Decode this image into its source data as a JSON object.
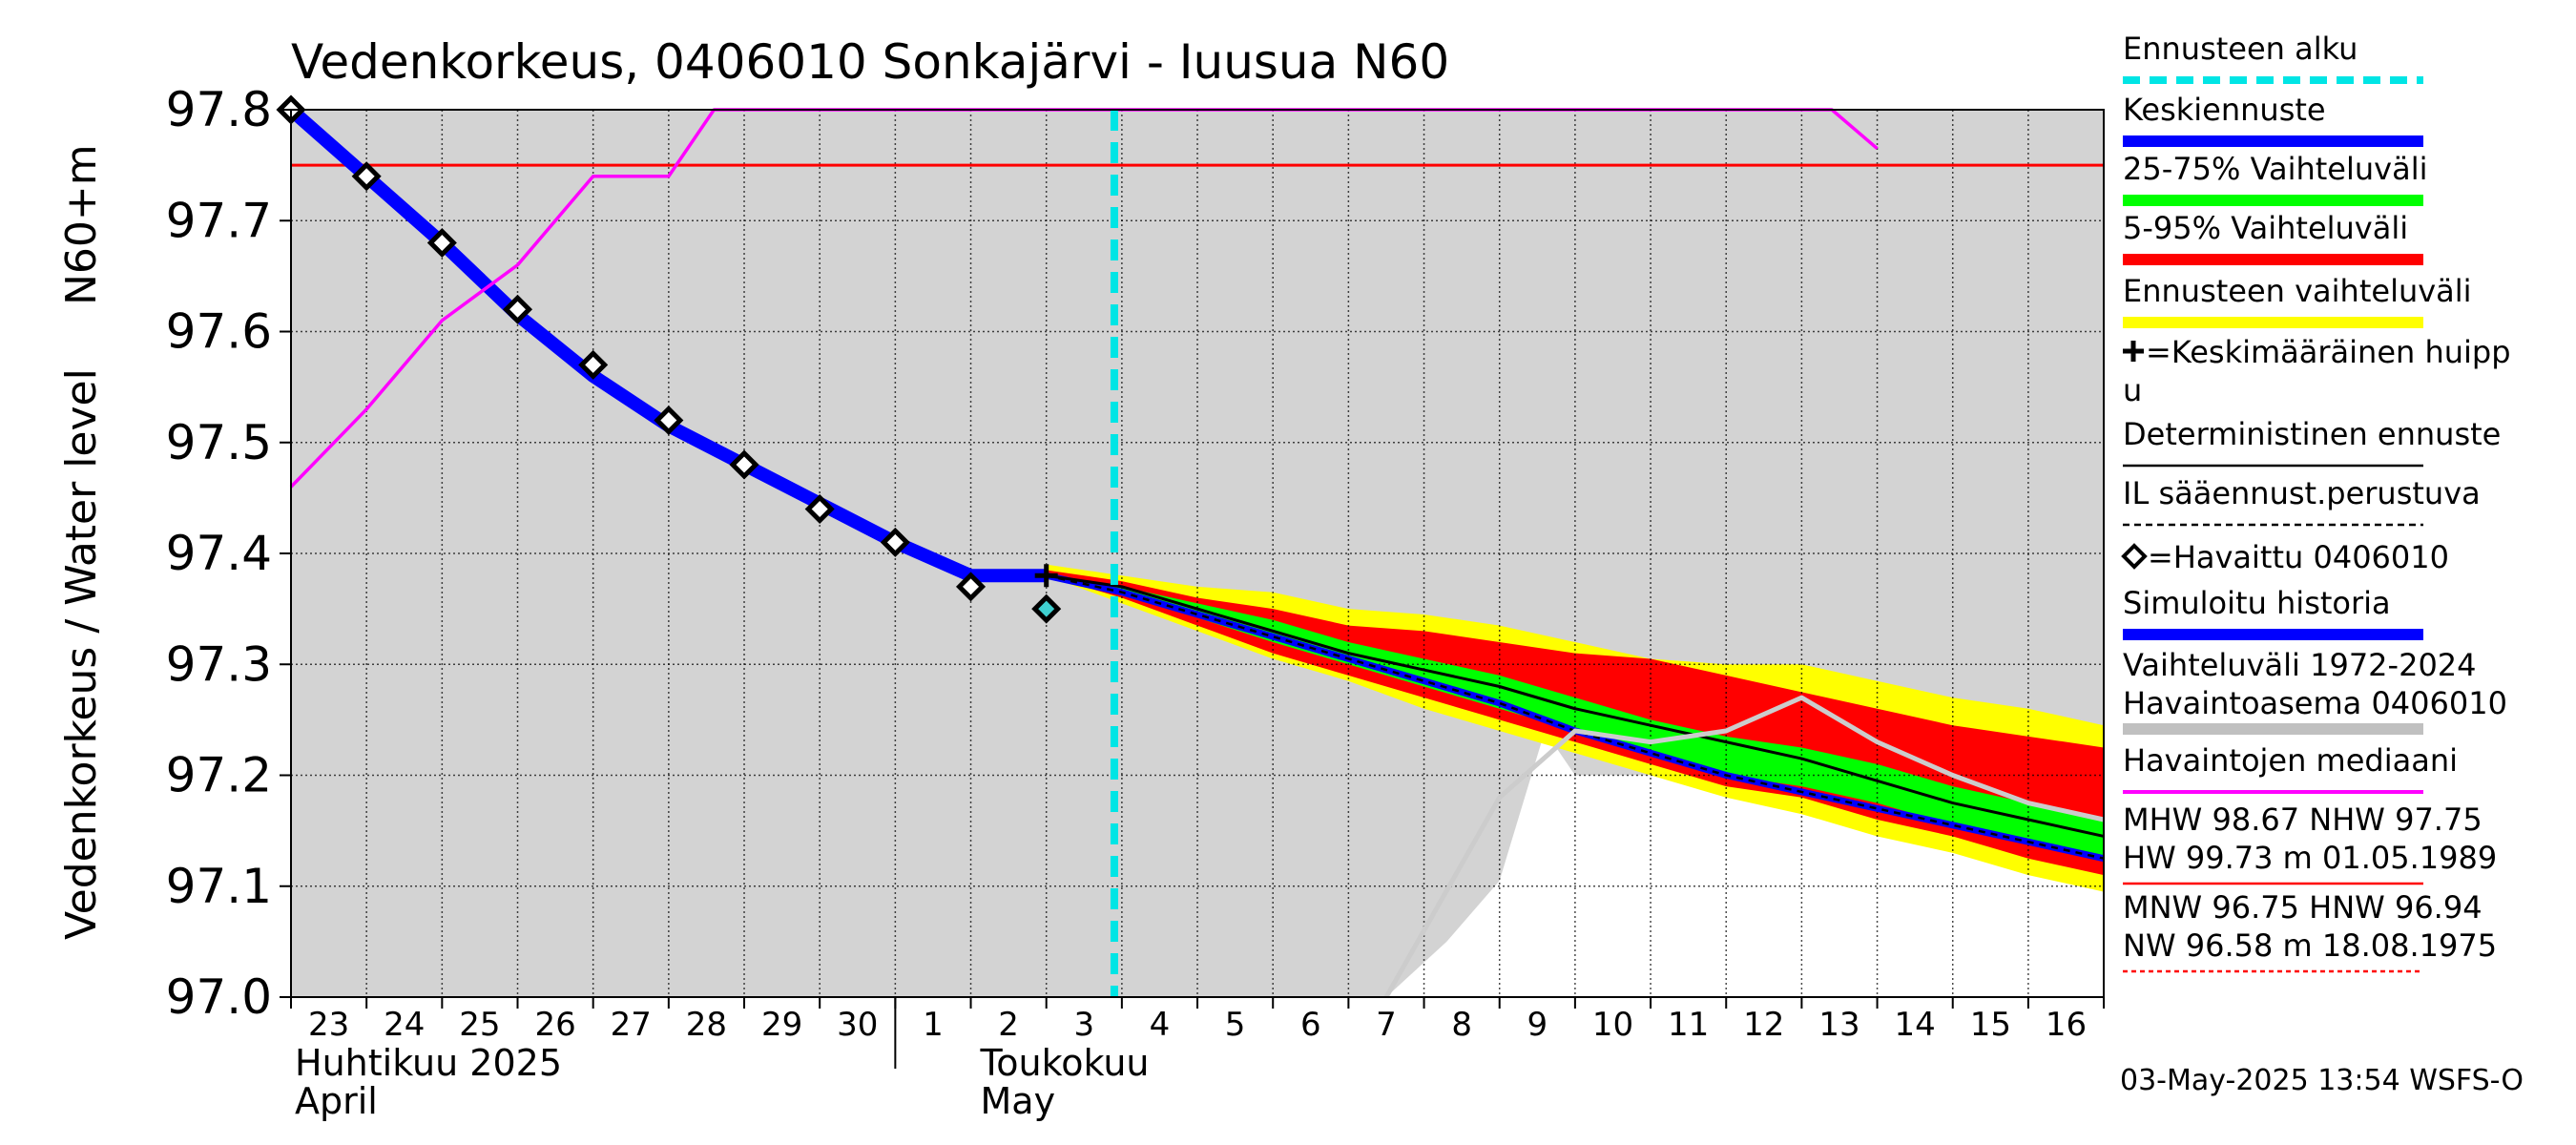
{
  "chart_data": {
    "type": "line",
    "title": "Vedenkorkeus, 0406010 Sonkajärvi - Iuusua N60",
    "ylabel_left": "Vedenkorkeus / Water level",
    "ylabel_unit": "N60+m",
    "ylim": [
      97.0,
      97.8
    ],
    "yticks": [
      "97.0",
      "97.1",
      "97.2",
      "97.3",
      "97.4",
      "97.5",
      "97.6",
      "97.7",
      "97.8"
    ],
    "x_days": [
      "23",
      "24",
      "25",
      "26",
      "27",
      "28",
      "29",
      "30",
      "1",
      "2",
      "3",
      "4",
      "5",
      "6",
      "7",
      "8",
      "9",
      "10",
      "11",
      "12",
      "13",
      "14",
      "15",
      "16"
    ],
    "x_start_date": "2025-04-23",
    "months": [
      {
        "fi": "Huhtikuu  2025",
        "en": "April",
        "start_day_index": 0
      },
      {
        "fi": "Toukokuu",
        "en": "May",
        "start_day_index": 9
      }
    ],
    "forecast_start_day": 10.9,
    "grid": true,
    "reference_line": {
      "name": "NHW",
      "value": 97.75,
      "color": "#ff0000"
    },
    "series": [
      {
        "name": "Simuloitu historia",
        "color": "#0000ff",
        "type": "line",
        "x": [
          0,
          1,
          2,
          3,
          4,
          5,
          6,
          7,
          8,
          9,
          10
        ],
        "y": [
          97.8,
          97.74,
          97.68,
          97.615,
          97.56,
          97.515,
          97.48,
          97.445,
          97.41,
          97.38,
          97.38
        ]
      },
      {
        "name": "Keskiennuste",
        "color": "#0000ff",
        "type": "line",
        "x": [
          10,
          11,
          12,
          13,
          14,
          15,
          16,
          17,
          18,
          19,
          20,
          21,
          22,
          23,
          24
        ],
        "y": [
          97.38,
          97.365,
          97.345,
          97.325,
          97.305,
          97.285,
          97.265,
          97.24,
          97.22,
          97.2,
          97.185,
          97.17,
          97.155,
          97.14,
          97.125
        ]
      },
      {
        "name": "Deterministinen ennuste",
        "color": "#000000",
        "type": "line",
        "x": [
          10,
          11,
          12,
          13,
          14,
          15,
          16,
          17,
          18,
          19,
          20,
          21,
          22,
          23,
          24
        ],
        "y": [
          97.38,
          97.37,
          97.35,
          97.33,
          97.31,
          97.295,
          97.28,
          97.26,
          97.245,
          97.23,
          97.215,
          97.195,
          97.175,
          97.16,
          97.145
        ]
      },
      {
        "name": "Havaittu 0406010",
        "color": "#000000",
        "type": "scatter",
        "x": [
          0,
          1,
          2,
          3,
          4,
          5,
          6,
          7,
          8,
          9,
          10
        ],
        "y": [
          97.8,
          97.74,
          97.68,
          97.62,
          97.57,
          97.52,
          97.48,
          97.44,
          97.41,
          97.37,
          97.35
        ]
      },
      {
        "name": "Havaintojen mediaani",
        "color": "#ff00ff",
        "type": "line",
        "x": [
          0,
          1,
          2,
          3,
          4,
          5,
          5.6,
          20.4,
          21
        ],
        "y": [
          97.46,
          97.53,
          97.61,
          97.66,
          97.74,
          97.74,
          97.8,
          97.8,
          97.765
        ]
      },
      {
        "name": "Vaihteluväli 1972-2024 Havaintoasema 0406010",
        "color": "#cccccc",
        "type": "line",
        "x": [
          14.5,
          16,
          17,
          18,
          19,
          20,
          21,
          22,
          23,
          24
        ],
        "y": [
          97.0,
          97.18,
          97.24,
          97.23,
          97.24,
          97.27,
          97.23,
          97.2,
          97.175,
          97.16
        ]
      }
    ],
    "bands": [
      {
        "name": "Ennusteen vaihteluväli",
        "color": "#ffff00",
        "x": [
          10,
          11,
          12,
          13,
          14,
          15,
          16,
          17,
          18,
          19,
          20,
          21,
          22,
          23,
          24
        ],
        "upper": [
          97.39,
          97.38,
          97.37,
          97.365,
          97.35,
          97.345,
          97.335,
          97.32,
          97.305,
          97.3,
          97.3,
          97.285,
          97.27,
          97.26,
          97.245
        ],
        "lower": [
          97.38,
          97.355,
          97.33,
          97.305,
          97.285,
          97.26,
          97.24,
          97.22,
          97.2,
          97.18,
          97.165,
          97.145,
          97.13,
          97.11,
          97.095
        ]
      },
      {
        "name": "5-95% Vaihteluväli",
        "color": "#ff0000",
        "x": [
          10,
          11,
          12,
          13,
          14,
          15,
          16,
          17,
          18,
          19,
          20,
          21,
          22,
          23,
          24
        ],
        "upper": [
          97.385,
          97.375,
          97.36,
          97.35,
          97.335,
          97.33,
          97.32,
          97.31,
          97.305,
          97.29,
          97.275,
          97.26,
          97.245,
          97.235,
          97.225
        ],
        "lower": [
          97.38,
          97.36,
          97.335,
          97.31,
          97.29,
          97.27,
          97.25,
          97.23,
          97.21,
          97.19,
          97.18,
          97.16,
          97.145,
          97.125,
          97.11
        ]
      },
      {
        "name": "25-75% Vaihteluväli",
        "color": "#00ff00",
        "x": [
          10,
          11,
          12,
          13,
          14,
          15,
          16,
          17,
          18,
          19,
          20,
          21,
          22,
          23,
          24
        ],
        "upper": [
          97.38,
          97.37,
          97.355,
          97.34,
          97.32,
          97.305,
          97.29,
          97.27,
          97.25,
          97.235,
          97.225,
          97.21,
          97.19,
          97.175,
          97.16
        ],
        "lower": [
          97.38,
          97.362,
          97.342,
          97.32,
          97.3,
          97.28,
          97.26,
          97.24,
          97.22,
          97.2,
          97.19,
          97.175,
          97.155,
          97.14,
          97.125
        ]
      }
    ],
    "history_range": {
      "name": "Vaihteluväli 1972-2024",
      "color": "#d3d3d3",
      "lower_x": [
        0,
        13.5,
        14.5,
        15.3,
        16,
        16.6,
        17,
        18,
        19,
        20,
        21,
        22,
        23,
        24
      ],
      "lower_y": [
        97.0,
        97.0,
        97.0,
        97.05,
        97.105,
        97.24,
        97.2,
        97.2,
        97.2,
        97.2,
        97.2,
        97.2,
        97.2,
        97.2
      ]
    }
  },
  "legend": [
    {
      "label": "Ennusteen alku",
      "color": "#00e5e5",
      "style": "dashed"
    },
    {
      "label": "Keskiennuste",
      "color": "#0000ff",
      "style": "thick"
    },
    {
      "label": "25-75% Vaihteluväli",
      "color": "#00ff00",
      "style": "thick"
    },
    {
      "label": "5-95% Vaihteluväli",
      "color": "#ff0000",
      "style": "thick"
    },
    {
      "label": "Ennusteen vaihteluväli",
      "color": "#ffff00",
      "style": "thick"
    },
    {
      "label": "=Keskimääräinen huipp",
      "label2": "u",
      "marker": "plus"
    },
    {
      "label": "Deterministinen ennuste",
      "color": "#000000",
      "style": "thin"
    },
    {
      "label": "IL sääennust.perustuva",
      "color": "#000000",
      "style": "dashed-thin"
    },
    {
      "label": "=Havaittu 0406010",
      "marker": "diamond"
    },
    {
      "label": "Simuloitu historia",
      "color": "#0000ff",
      "style": "thick"
    },
    {
      "label": "Vaihteluväli 1972-2024",
      "label2": " Havaintoasema 0406010",
      "color": "#c0c0c0",
      "style": "thick"
    },
    {
      "label": "Havaintojen mediaani",
      "color": "#ff00ff",
      "style": "medium"
    },
    {
      "label": "MHW  98.67 NHW  97.75",
      "label2": "HW  99.73 m 01.05.1989",
      "color": "#ff0000",
      "style": "thin"
    },
    {
      "label": "MNW  96.75 HNW  96.94",
      "label2": "NW  96.58 m 18.08.1975",
      "color": "#ff0000",
      "style": "dotted-thin"
    }
  ],
  "timestamp": "03-May-2025 13:54 WSFS-O"
}
